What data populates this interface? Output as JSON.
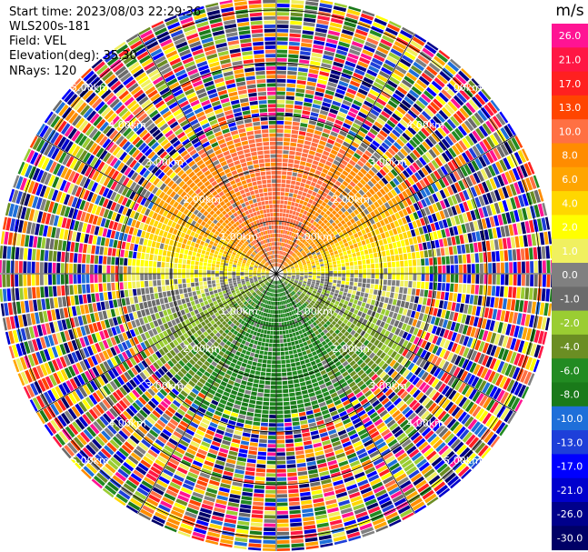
{
  "header": {
    "start_time": "Start time: 2023/08/03 22:29:36",
    "instrument": "WLS200s-181",
    "field": "Field: VEL",
    "elevation": "Elevation(deg): 35.30",
    "nrays": "NRays: 120"
  },
  "chart_data": {
    "type": "heatmap",
    "subtype": "lidar-ppi-polar",
    "field": "VEL",
    "units": "m/s",
    "nrays": 120,
    "elevation_deg": 35.3,
    "range_ring_labels": [
      "1.00km",
      "2.00km",
      "3.00km",
      "4.00km",
      "5.00km"
    ],
    "range_ring_km": [
      1,
      2,
      3,
      4,
      5
    ],
    "max_range_km": 5.5,
    "colorbar_ticks": [
      26.0,
      21.0,
      17.0,
      13.0,
      10.0,
      8.0,
      6.0,
      4.0,
      2.0,
      1.0,
      0.0,
      -1.0,
      -2.0,
      -4.0,
      -6.0,
      -8.0,
      -10.0,
      -13.0,
      -17.0,
      -21.0,
      -26.0,
      -30.0
    ],
    "colorbar_colors": [
      "#ff1493",
      "#ff1744",
      "#ff2020",
      "#ff4500",
      "#ff7043",
      "#ff8c00",
      "#ffa500",
      "#ffd700",
      "#ffff00",
      "#f0f060",
      "#808080",
      "#6b6b6b",
      "#9acd32",
      "#6b8e23",
      "#228b22",
      "#1a7a1a",
      "#1e6fd9",
      "#1e3fd9",
      "#0000ff",
      "#0000cd",
      "#00008b",
      "#000066"
    ],
    "velocity_pattern": {
      "north": "positive (approx 6 to 13 m/s)",
      "east_west": "near 0 to 4 m/s",
      "south": "negative (approx -4 to -10 m/s)",
      "beyond_km": 2.6,
      "beyond_note": "noisy/aliased values across full colour range"
    }
  }
}
